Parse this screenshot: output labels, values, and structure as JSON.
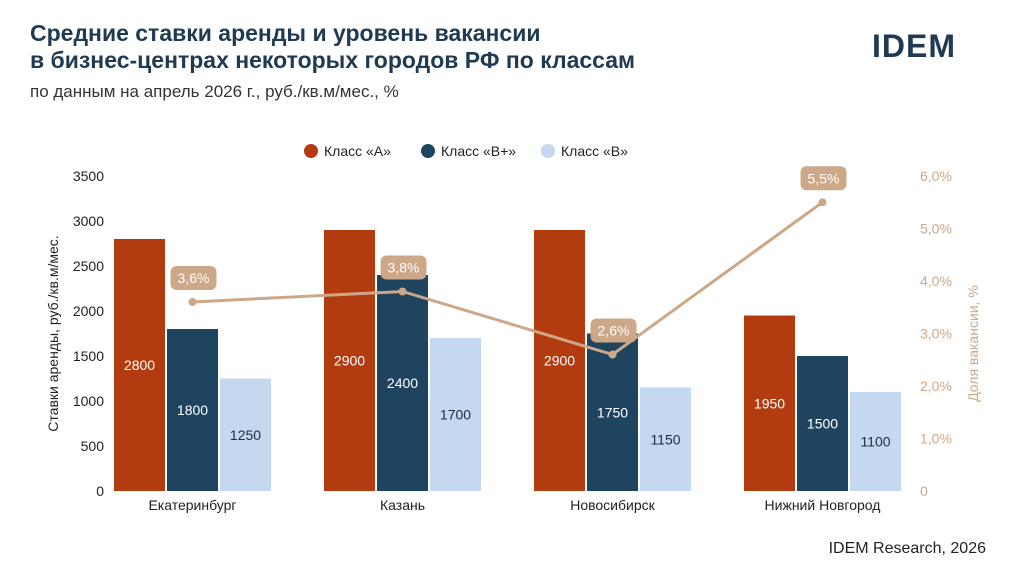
{
  "header": {
    "title_line1": "Средние ставки аренды и уровень вакансии",
    "title_line2": "в бизнес-центрах некоторых городов РФ по классам",
    "subtitle": "по данным на апрель 2026 г., руб./кв.м/мес., %",
    "logo": "IDEM"
  },
  "footer": {
    "source": "IDEM Research, 2026"
  },
  "colors": {
    "class_a": "#b23c10",
    "class_bplus": "#1f4460",
    "class_b": "#c4d9f0",
    "vacancy": "#cda888",
    "title": "#1f3a52"
  },
  "chart_data": {
    "type": "bar",
    "categories": [
      "Екатеринбург",
      "Казань",
      "Новосибирск",
      "Нижний Новгород"
    ],
    "series": [
      {
        "name": "Класс «А»",
        "values": [
          2800,
          2900,
          2900,
          1950
        ]
      },
      {
        "name": "Класс «В+»",
        "values": [
          1800,
          2400,
          1750,
          1500
        ]
      },
      {
        "name": "Класс «В»",
        "values": [
          1250,
          1700,
          1150,
          1100
        ]
      }
    ],
    "line_series": {
      "values": [
        3.6,
        3.8,
        2.6,
        5.5
      ],
      "labels": [
        "3,6%",
        "3,8%",
        "2,6%",
        "5,5%"
      ],
      "axis": "right"
    },
    "ylabel": "Ставки аренды, руб./кв.м/мес.",
    "ylabel_right": "Доля вакансии, %",
    "ylim": [
      0,
      3500
    ],
    "ylim_right": [
      0,
      6
    ],
    "yticks": [
      "0",
      "500",
      "1000",
      "1500",
      "2000",
      "2500",
      "3000",
      "3500"
    ],
    "yticks_right": [
      "0",
      "1,0%",
      "2,0%",
      "3,0%",
      "4,0%",
      "5,0%",
      "6,0%"
    ],
    "legend_position": "top-center",
    "grid": false
  }
}
